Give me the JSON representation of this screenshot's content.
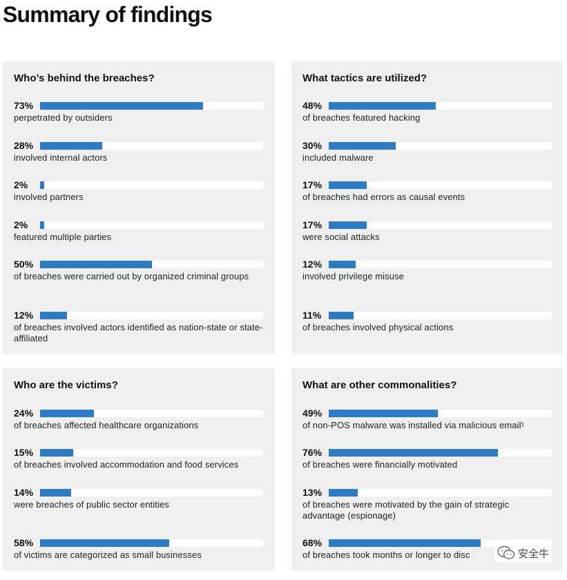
{
  "title": "Summary of findings",
  "colors": {
    "bar": "#2d7bc4",
    "panel": "#efefef",
    "track": "#ffffff"
  },
  "panels": [
    {
      "heading": "Who’s behind the breaches?",
      "stats": [
        {
          "pct": "73%",
          "value": 73,
          "desc": "perpetrated by outsiders"
        },
        {
          "pct": "28%",
          "value": 28,
          "desc": "involved internal actors"
        },
        {
          "pct": "2%",
          "value": 2,
          "desc": "involved partners"
        },
        {
          "pct": "2%",
          "value": 2,
          "desc": "featured multiple parties"
        },
        {
          "pct": "50%",
          "value": 50,
          "desc": "of breaches were carried out by organized criminal groups"
        },
        {
          "pct": "12%",
          "value": 12,
          "desc": "of breaches involved actors identified as nation-state or state-affiliated"
        }
      ]
    },
    {
      "heading": "What tactics are utilized?",
      "stats": [
        {
          "pct": "48%",
          "value": 48,
          "desc": "of breaches featured hacking"
        },
        {
          "pct": "30%",
          "value": 30,
          "desc": "included malware"
        },
        {
          "pct": "17%",
          "value": 17,
          "desc": "of breaches had errors as causal events"
        },
        {
          "pct": "17%",
          "value": 17,
          "desc": "were social attacks"
        },
        {
          "pct": "12%",
          "value": 12,
          "desc": "involved privilege misuse"
        },
        {
          "pct": "11%",
          "value": 11,
          "desc": "of breaches involved physical actions"
        }
      ]
    },
    {
      "heading": "Who are the victims?",
      "stats": [
        {
          "pct": "24%",
          "value": 24,
          "desc": "of breaches affected healthcare organizations"
        },
        {
          "pct": "15%",
          "value": 15,
          "desc": "of breaches involved accommodation and food services"
        },
        {
          "pct": "14%",
          "value": 14,
          "desc": "were breaches of public sector entities"
        },
        {
          "pct": "58%",
          "value": 58,
          "desc": "of victims are categorized as small businesses"
        }
      ]
    },
    {
      "heading": "What are other commonalities?",
      "stats": [
        {
          "pct": "49%",
          "value": 49,
          "desc": "of non-POS malware was installed via malicious email¹"
        },
        {
          "pct": "76%",
          "value": 76,
          "desc": "of breaches were financially motivated"
        },
        {
          "pct": "13%",
          "value": 13,
          "desc": "of breaches were motivated by the gain of strategic advantage (espionage)"
        },
        {
          "pct": "68%",
          "value": 68,
          "desc": "of breaches took months or longer to disc"
        }
      ]
    }
  ],
  "watermark": {
    "text": "安全牛",
    "icon": "wechat-icon"
  }
}
